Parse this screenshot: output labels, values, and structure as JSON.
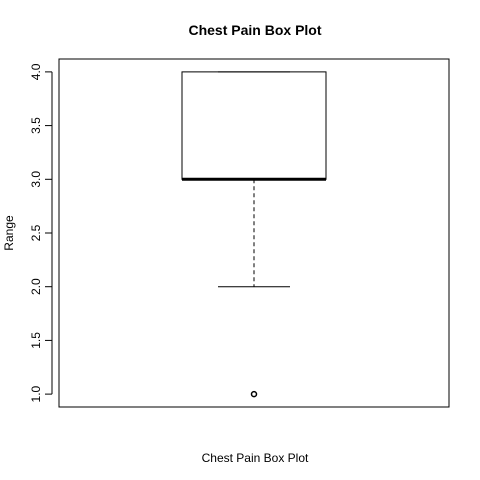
{
  "chart_data": {
    "type": "box",
    "title": "Chest Pain Box Plot",
    "xlabel": "Chest Pain Box Plot",
    "ylabel": "Range",
    "ylim": [
      0.88,
      4.12
    ],
    "y_ticks": [
      "1.0",
      "1.5",
      "2.0",
      "2.5",
      "3.0",
      "3.5",
      "4.0"
    ],
    "grid": false,
    "boxes": [
      {
        "min": 2.0,
        "q1": 3.0,
        "median": 3.0,
        "q3": 4.0,
        "max": 4.0,
        "outliers": [
          1.0
        ]
      }
    ]
  }
}
